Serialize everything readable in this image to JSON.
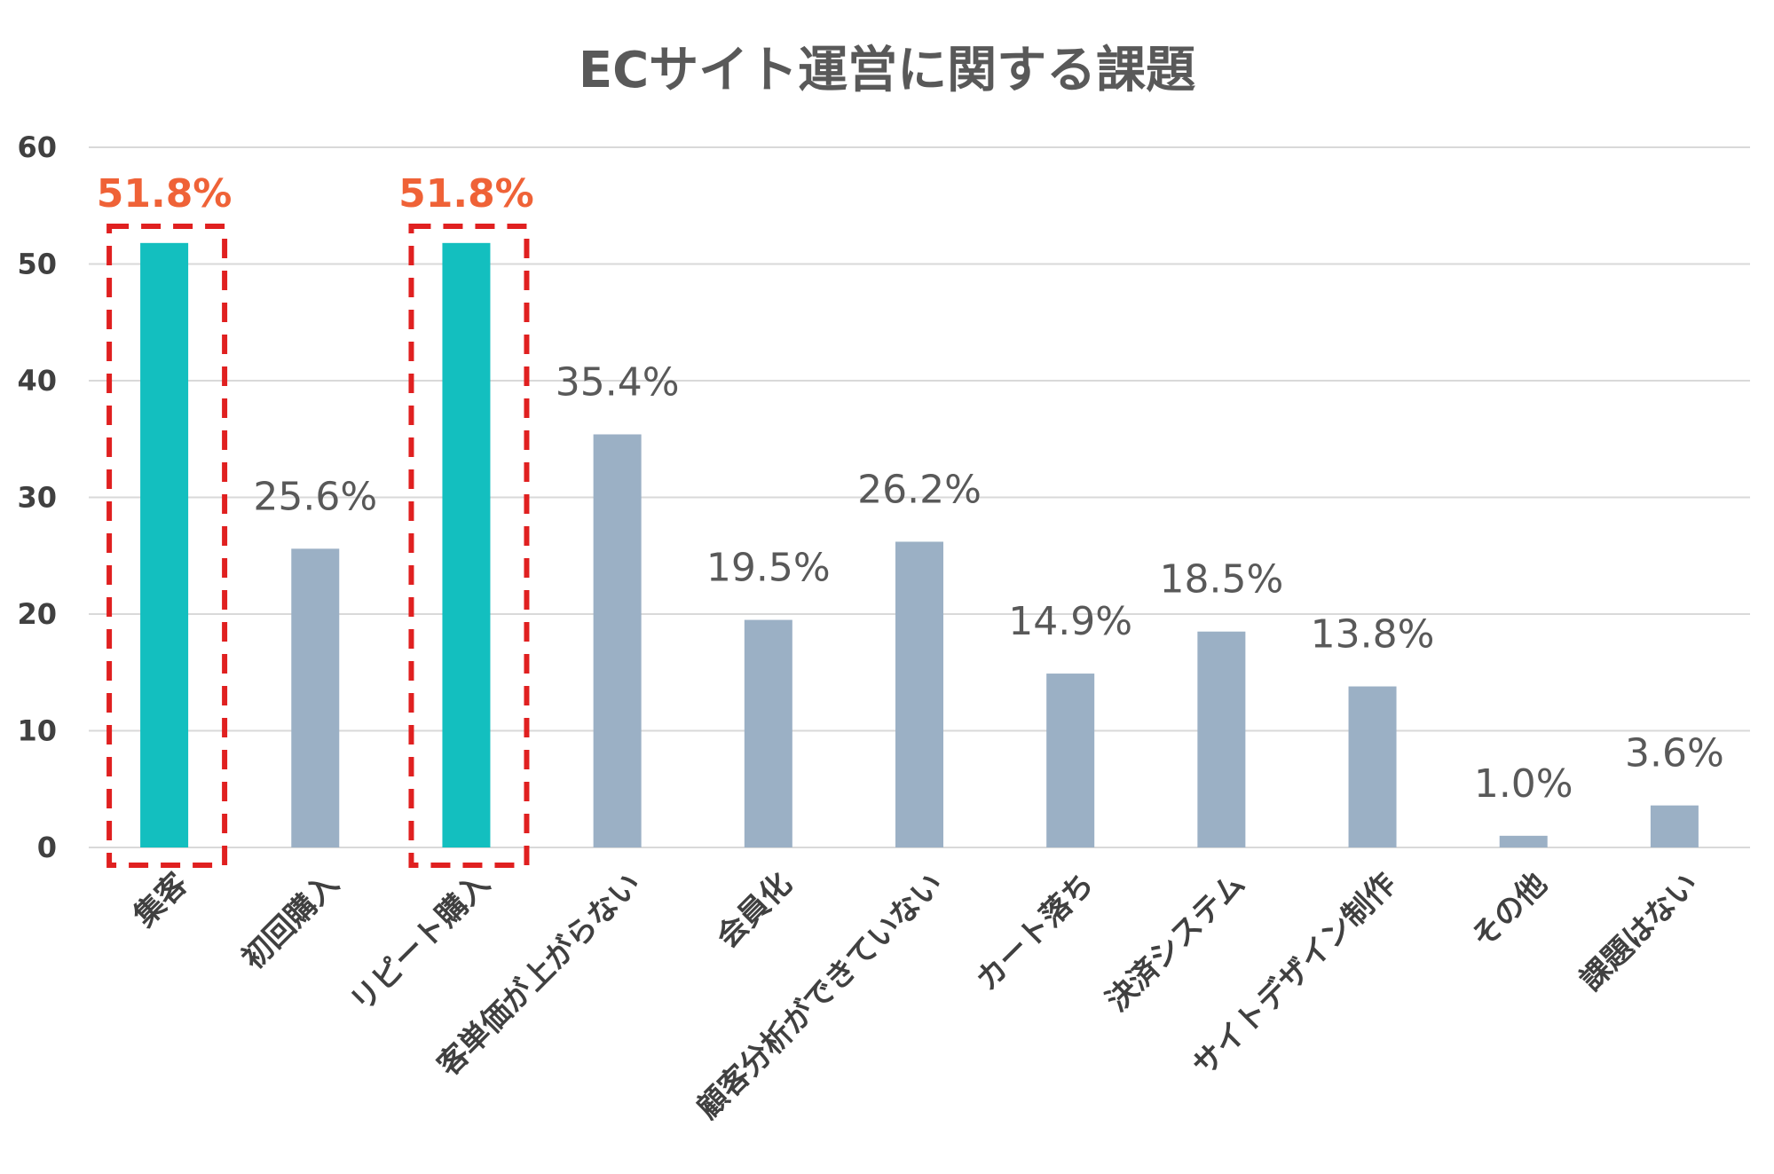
{
  "chart_data": {
    "type": "bar",
    "title": "ECサイト運営に関する課題",
    "xlabel": "",
    "ylabel": "",
    "ylim": [
      0,
      60
    ],
    "yticks": [
      0,
      10,
      20,
      30,
      40,
      50,
      60
    ],
    "grid": true,
    "legend": "none",
    "categories": [
      "集客",
      "初回購入",
      "リピート購入",
      "客単価が上がらない",
      "会員化",
      "顧客分析ができていない",
      "カート落ち",
      "決済システム",
      "サイトデザイン制作",
      "その他",
      "課題はない"
    ],
    "values": [
      51.8,
      25.6,
      51.8,
      35.4,
      19.5,
      26.2,
      14.9,
      18.5,
      13.8,
      1.0,
      3.6
    ],
    "data_labels": [
      "51.8%",
      "25.6%",
      "51.8%",
      "35.4%",
      "19.5%",
      "26.2%",
      "14.9%",
      "18.5%",
      "13.8%",
      "1.0%",
      "3.6%"
    ],
    "highlighted": [
      0,
      2
    ],
    "colors": {
      "highlight_bar": "#13BFBF",
      "bar": "#9BB0C5",
      "highlight_label": "#EF6237",
      "highlight_box": "#E02020",
      "grid": "#D9D9D9",
      "axis_text": "#404040",
      "title": "#595959"
    }
  }
}
